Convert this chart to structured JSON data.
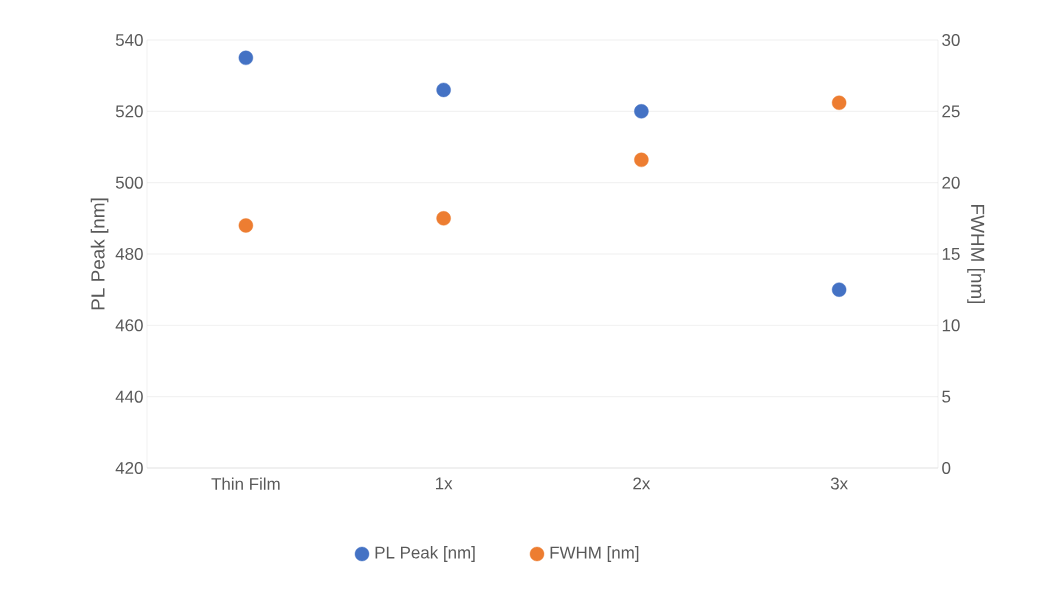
{
  "chart_data": {
    "type": "scatter",
    "ylabel": "PL Peak [nm]",
    "y2label": "FWHM [nm]",
    "categories": [
      "Thin Film",
      "1x",
      "2x",
      "3x"
    ],
    "series": [
      {
        "name": "PL Peak [nm]",
        "color": "#4472c4",
        "values": [
          535,
          526,
          520,
          470
        ]
      },
      {
        "name": "FWHM [nm]",
        "color": "#ed7d31",
        "axis": "y2",
        "values": [
          17,
          17.5,
          21.6,
          25.6
        ]
      }
    ],
    "ylim": [
      420,
      540
    ],
    "yticks": [
      420,
      440,
      460,
      480,
      500,
      520,
      540
    ],
    "y2lim": [
      0,
      30
    ],
    "y2ticks": [
      0,
      5,
      10,
      15,
      20,
      25,
      30
    ],
    "grid": "y",
    "legend": "bottom",
    "marker": "circle"
  }
}
